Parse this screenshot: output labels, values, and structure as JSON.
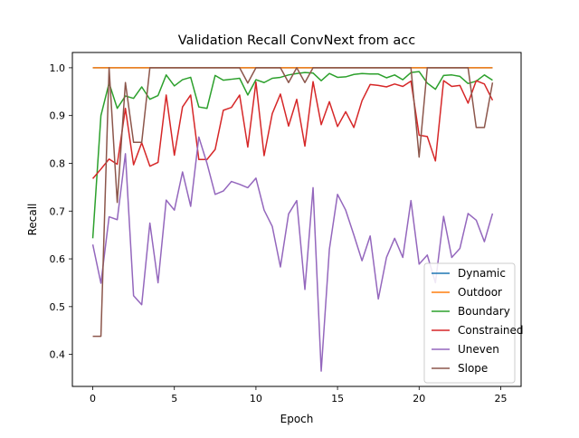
{
  "chart_data": {
    "type": "line",
    "title": "Validation Recall ConvNext from acc",
    "xlabel": "Epoch",
    "ylabel": "Recall",
    "xlim": [
      -1.25,
      26.25
    ],
    "ylim": [
      0.333,
      1.032
    ],
    "x_ticks": [
      0,
      5,
      10,
      15,
      20,
      25
    ],
    "y_ticks": [
      0.4,
      0.5,
      0.6,
      0.7,
      0.8,
      0.9,
      1.0
    ],
    "grid": false,
    "legend_position": "bottom-right",
    "x": [
      0,
      0.5,
      1,
      1.5,
      2,
      2.5,
      3,
      3.5,
      4,
      4.5,
      5,
      5.5,
      6,
      6.5,
      7,
      7.5,
      8,
      8.5,
      9,
      9.5,
      10,
      10.5,
      11,
      11.5,
      12,
      12.5,
      13,
      13.5,
      14,
      14.5,
      15,
      15.5,
      16,
      16.5,
      17,
      17.5,
      18,
      18.5,
      19,
      19.5,
      20,
      20.5,
      21,
      21.5,
      22,
      22.5,
      23,
      23.5,
      24,
      24.5
    ],
    "series": [
      {
        "name": "Dynamic",
        "color": "#1f77b4",
        "values": [
          1,
          1,
          1,
          1,
          1,
          1,
          1,
          1,
          1,
          1,
          1,
          1,
          1,
          1,
          1,
          1,
          1,
          1,
          1,
          1,
          1,
          1,
          1,
          1,
          1,
          1,
          1,
          1,
          1,
          1,
          1,
          1,
          1,
          1,
          1,
          1,
          1,
          1,
          1,
          1,
          1,
          1,
          1,
          1,
          1,
          1,
          1,
          1,
          1,
          1
        ]
      },
      {
        "name": "Outdoor",
        "color": "#ff7f0e",
        "values": [
          1,
          1,
          1,
          1,
          1,
          1,
          1,
          1,
          1,
          1,
          1,
          1,
          1,
          1,
          1,
          1,
          1,
          1,
          1,
          1,
          1,
          1,
          1,
          1,
          1,
          1,
          1,
          1,
          1,
          1,
          1,
          1,
          1,
          1,
          1,
          1,
          1,
          1,
          1,
          1,
          1,
          1,
          1,
          1,
          1,
          1,
          1,
          1,
          1,
          1
        ]
      },
      {
        "name": "Boundary",
        "color": "#2ca02c",
        "values": [
          0.643,
          0.9,
          0.968,
          0.915,
          0.941,
          0.936,
          0.96,
          0.934,
          0.942,
          0.985,
          0.962,
          0.975,
          0.98,
          0.918,
          0.915,
          0.984,
          0.974,
          0.976,
          0.978,
          0.943,
          0.975,
          0.969,
          0.978,
          0.98,
          0.985,
          0.988,
          0.99,
          0.989,
          0.973,
          0.988,
          0.98,
          0.981,
          0.986,
          0.988,
          0.987,
          0.987,
          0.979,
          0.985,
          0.975,
          0.99,
          0.992,
          0.968,
          0.955,
          0.984,
          0.985,
          0.982,
          0.967,
          0.972,
          0.985,
          0.974
        ]
      },
      {
        "name": "Constrained",
        "color": "#d62728",
        "values": [
          0.768,
          0.788,
          0.809,
          0.798,
          0.915,
          0.797,
          0.843,
          0.794,
          0.802,
          0.943,
          0.817,
          0.918,
          0.943,
          0.808,
          0.808,
          0.829,
          0.911,
          0.917,
          0.943,
          0.834,
          0.97,
          0.816,
          0.904,
          0.945,
          0.878,
          0.934,
          0.836,
          0.971,
          0.881,
          0.929,
          0.877,
          0.908,
          0.875,
          0.931,
          0.965,
          0.963,
          0.96,
          0.966,
          0.961,
          0.972,
          0.859,
          0.856,
          0.805,
          0.973,
          0.961,
          0.963,
          0.926,
          0.973,
          0.966,
          0.932
        ]
      },
      {
        "name": "Uneven",
        "color": "#9467bd",
        "values": [
          0.63,
          0.549,
          0.688,
          0.682,
          0.82,
          0.523,
          0.504,
          0.675,
          0.55,
          0.723,
          0.702,
          0.782,
          0.71,
          0.855,
          0.8,
          0.735,
          0.742,
          0.762,
          0.756,
          0.749,
          0.769,
          0.702,
          0.668,
          0.583,
          0.694,
          0.722,
          0.536,
          0.749,
          0.365,
          0.62,
          0.735,
          0.702,
          0.65,
          0.596,
          0.648,
          0.516,
          0.603,
          0.643,
          0.603,
          0.722,
          0.589,
          0.608,
          0.55,
          0.689,
          0.603,
          0.622,
          0.695,
          0.681,
          0.636,
          0.695
        ]
      },
      {
        "name": "Slope",
        "color": "#8c564b",
        "values": [
          0.438,
          0.438,
          1,
          0.718,
          0.969,
          0.844,
          0.844,
          1,
          1,
          1,
          1,
          1,
          1,
          1,
          1,
          1,
          1,
          1,
          1,
          0.968,
          1,
          1,
          1,
          1,
          0.969,
          1,
          0.969,
          1,
          1,
          1,
          1,
          1,
          1,
          1,
          1,
          1,
          1,
          1,
          1,
          1,
          0.813,
          1,
          1,
          1,
          1,
          1,
          1,
          0.875,
          0.875,
          0.969
        ]
      }
    ]
  }
}
